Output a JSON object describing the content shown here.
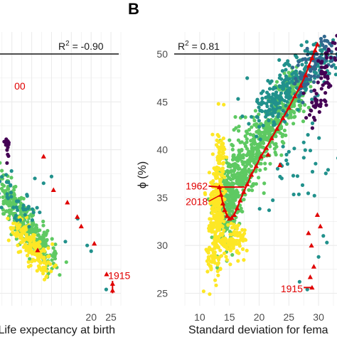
{
  "colors": {
    "grid": "#ebebeb",
    "viridis_dark": "#440154",
    "viridis_blue": "#31688e",
    "viridis_teal": "#21918c",
    "viridis_green": "#5ec962",
    "viridis_yellow": "#fde725",
    "highlight_red": "#e00000"
  },
  "chart_data": [
    {
      "type": "scatter",
      "panel_label": "",
      "title": "",
      "xlabel": "Life expectancy at birth",
      "ylabel": "",
      "xlim": [
        -3,
        27.5
      ],
      "ylim": [
        23.7,
        52.3
      ],
      "x_ticks": [
        "20",
        "25"
      ],
      "y_ticks": [],
      "r2_text": "R² = -0.90",
      "r2_prefix": "R",
      "r2_sup": "2",
      "r2_value": " = -0.90",
      "reference_line_y": 50,
      "grid": true,
      "annotations": [
        {
          "text": "00",
          "x": 0.6,
          "y": 46.3
        },
        {
          "text": "1915",
          "x": 24.3,
          "y": 26.5
        }
      ],
      "highlight_series": [
        {
          "x": 23.9,
          "y": 27.0
        },
        {
          "x": 25.4,
          "y": 26.0
        },
        {
          "x": 25.4,
          "y": 25.3
        },
        {
          "x": 8.0,
          "y": 39.3
        },
        {
          "x": 10.5,
          "y": 35.8
        },
        {
          "x": 14.0,
          "y": 34.5
        },
        {
          "x": 16.5,
          "y": 33.0
        },
        {
          "x": 17.5,
          "y": 32.0
        },
        {
          "x": 20.8,
          "y": 30.2
        },
        {
          "x": 6.5,
          "y": 29.5
        }
      ],
      "outlier_points": [
        {
          "x": 16.6,
          "y": 32.8
        },
        {
          "x": 19.0,
          "y": 30.0
        },
        {
          "x": 20.0,
          "y": 29.4
        },
        {
          "x": 10.0,
          "y": 37.2
        },
        {
          "x": 5.8,
          "y": 37.0
        },
        {
          "x": 13.5,
          "y": 30.4
        },
        {
          "x": 23.8,
          "y": 25.4
        },
        {
          "x": 8.0,
          "y": 36.5
        }
      ]
    },
    {
      "type": "scatter",
      "panel_label": "B",
      "title": "",
      "xlabel": "Standard deviation for fema",
      "ylabel": "ϕ (%)",
      "xlim": [
        7.5,
        33.1
      ],
      "ylim": [
        23.7,
        52.3
      ],
      "x_ticks": [
        "10",
        "15",
        "20",
        "25",
        "30"
      ],
      "y_ticks": [
        "25",
        "30",
        "35",
        "40",
        "45",
        "50"
      ],
      "r2_text": "R² = 0.81",
      "r2_prefix": "R",
      "r2_sup": "2",
      "r2_value": " = 0.81",
      "reference_line_y": 50,
      "grid": true,
      "annotations": [
        {
          "text": "1962",
          "x": 10.5,
          "y": 36.2
        },
        {
          "text": "2018",
          "x": 10.5,
          "y": 34.6
        },
        {
          "text": "1915",
          "x": 26.5,
          "y": 25.5
        }
      ],
      "highlight_series": [
        {
          "x": 13.3,
          "y": 36.1
        },
        {
          "x": 13.6,
          "y": 35.3
        },
        {
          "x": 13.9,
          "y": 34.4
        },
        {
          "x": 14.2,
          "y": 33.7
        },
        {
          "x": 14.6,
          "y": 33.1
        },
        {
          "x": 15.0,
          "y": 32.8
        },
        {
          "x": 15.4,
          "y": 32.9
        },
        {
          "x": 15.8,
          "y": 33.2
        },
        {
          "x": 16.3,
          "y": 33.9
        },
        {
          "x": 16.8,
          "y": 34.7
        },
        {
          "x": 17.4,
          "y": 35.6
        },
        {
          "x": 18.0,
          "y": 36.4
        },
        {
          "x": 18.7,
          "y": 37.4
        },
        {
          "x": 19.5,
          "y": 38.3
        },
        {
          "x": 20.3,
          "y": 39.3
        },
        {
          "x": 21.2,
          "y": 40.2
        },
        {
          "x": 22.1,
          "y": 41.2
        },
        {
          "x": 23.0,
          "y": 42.2
        },
        {
          "x": 24.0,
          "y": 43.3
        },
        {
          "x": 25.0,
          "y": 44.4
        },
        {
          "x": 26.0,
          "y": 45.6
        },
        {
          "x": 27.0,
          "y": 46.7
        },
        {
          "x": 27.8,
          "y": 47.8
        },
        {
          "x": 28.4,
          "y": 48.8
        },
        {
          "x": 28.9,
          "y": 49.6
        },
        {
          "x": 29.4,
          "y": 50.4
        },
        {
          "x": 29.8,
          "y": 51.0
        },
        {
          "x": 28.8,
          "y": 30.0
        },
        {
          "x": 29.8,
          "y": 33.2
        },
        {
          "x": 30.3,
          "y": 32.0
        },
        {
          "x": 28.3,
          "y": 31.3
        },
        {
          "x": 29.2,
          "y": 27.8
        },
        {
          "x": 28.6,
          "y": 26.7
        },
        {
          "x": 28.9,
          "y": 25.6
        },
        {
          "x": 23.5,
          "y": 38.4
        },
        {
          "x": 21.5,
          "y": 39.5
        }
      ],
      "outlier_points": [
        {
          "x": 30.0,
          "y": 28.8
        },
        {
          "x": 30.8,
          "y": 31.0
        },
        {
          "x": 31.4,
          "y": 30.3
        },
        {
          "x": 28.1,
          "y": 25.4
        },
        {
          "x": 26.8,
          "y": 26.2
        },
        {
          "x": 29.3,
          "y": 35.2
        },
        {
          "x": 27.3,
          "y": 36.3
        },
        {
          "x": 31.6,
          "y": 37.9
        }
      ]
    }
  ]
}
